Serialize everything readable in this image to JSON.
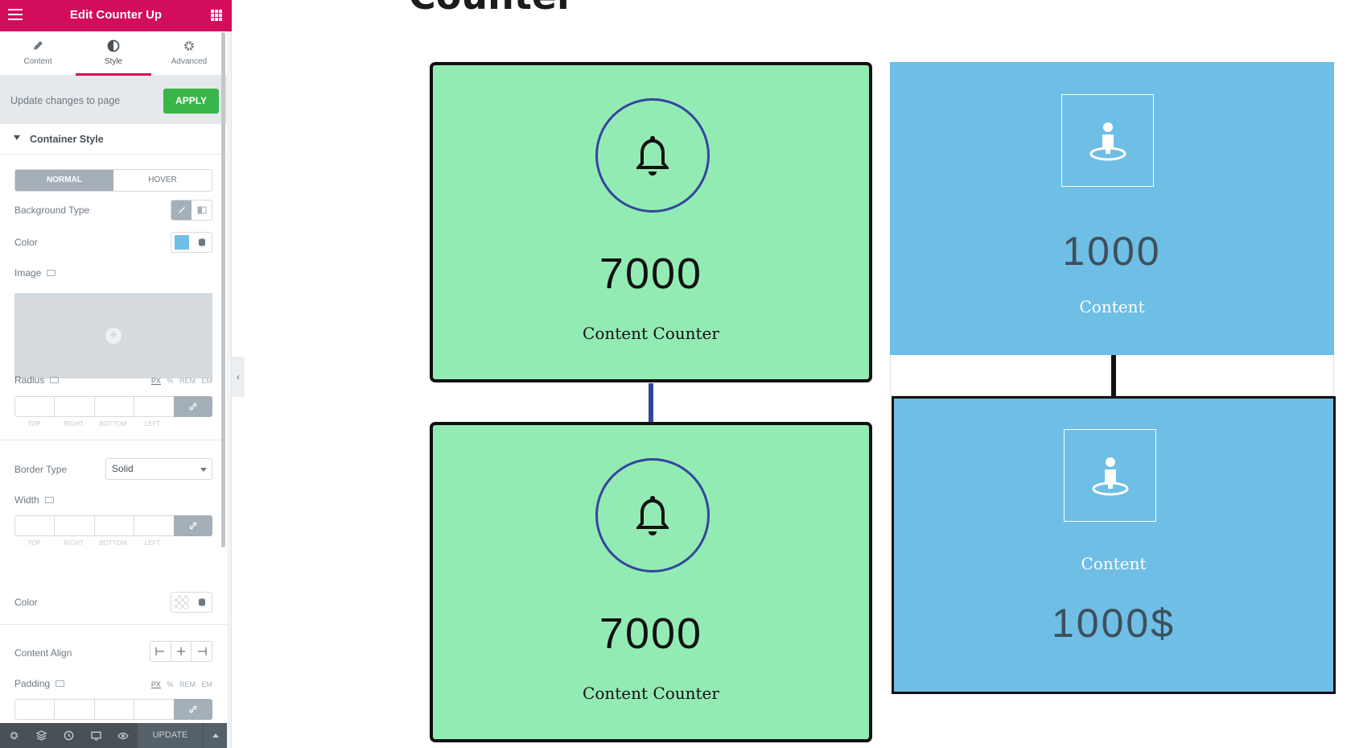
{
  "topbar": {
    "title": "Edit Counter Up"
  },
  "tabs": [
    {
      "label": "Content",
      "icon": "pencil-icon"
    },
    {
      "label": "Style",
      "icon": "half-circle-icon"
    },
    {
      "label": "Advanced",
      "icon": "gear-icon"
    }
  ],
  "apply_bar": {
    "text": "Update changes to page",
    "button": "APPLY"
  },
  "section": {
    "title": "Container Style"
  },
  "state_toggle": {
    "normal": "NORMAL",
    "hover": "HOVER"
  },
  "controls": {
    "background_type": "Background Type",
    "color": "Color",
    "image": "Image",
    "radius": "Radius",
    "border_type": "Border Type",
    "border_type_value": "Solid",
    "width": "Width",
    "border_color": "Color",
    "content_align": "Content Align",
    "padding": "Padding"
  },
  "units": {
    "px": "PX",
    "pct": "%",
    "rem": "REM",
    "em": "EM"
  },
  "dimension_labels": {
    "top": "TOP",
    "right": "RIGHT",
    "bottom": "BOTTOM",
    "left": "LEFT"
  },
  "colors": {
    "brand": "#d30c5c",
    "apply": "#39b54a",
    "swatch": "#6ebee5",
    "green_card": "#93ebb4",
    "blue_card": "#6ebee5"
  },
  "footer": {
    "update": "UPDATE"
  },
  "canvas": {
    "heading": "Counter",
    "green_cards": [
      {
        "number": "7000",
        "caption": "Content Counter"
      },
      {
        "number": "7000",
        "caption": "Content Counter"
      }
    ],
    "blue_cards": [
      {
        "number": "1000",
        "caption": "Content"
      },
      {
        "caption": "Content",
        "number": "1000$"
      }
    ]
  }
}
